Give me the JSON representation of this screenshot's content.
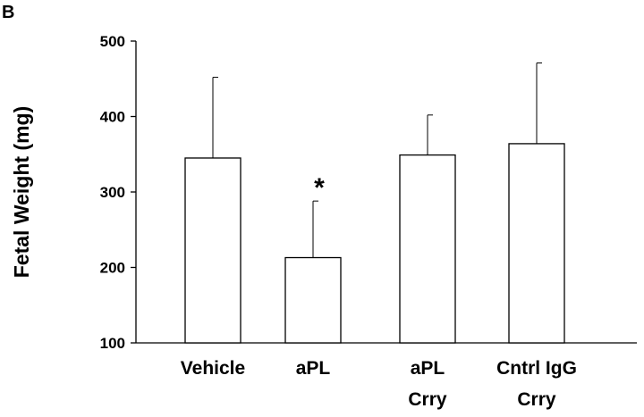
{
  "chart_data": {
    "type": "bar",
    "panel_label": "B",
    "title": "",
    "xlabel": "",
    "ylabel": "Fetal Weight (mg)",
    "ylim": [
      100,
      500
    ],
    "yticks": [
      "100",
      "200",
      "300",
      "400",
      "500"
    ],
    "categories": [
      [
        "Vehicle"
      ],
      [
        "aPL"
      ],
      [
        "aPL",
        "Crry"
      ],
      [
        "Cntrl IgG",
        "Crry"
      ]
    ],
    "values": [
      345,
      213,
      349,
      364
    ],
    "error_upper": [
      452,
      288,
      402,
      471
    ],
    "annotations": [
      "",
      "*",
      "",
      ""
    ],
    "error_bars": true,
    "grid": false,
    "legend": "none",
    "bar_fill": "#ffffff",
    "bar_stroke": "#000000"
  }
}
